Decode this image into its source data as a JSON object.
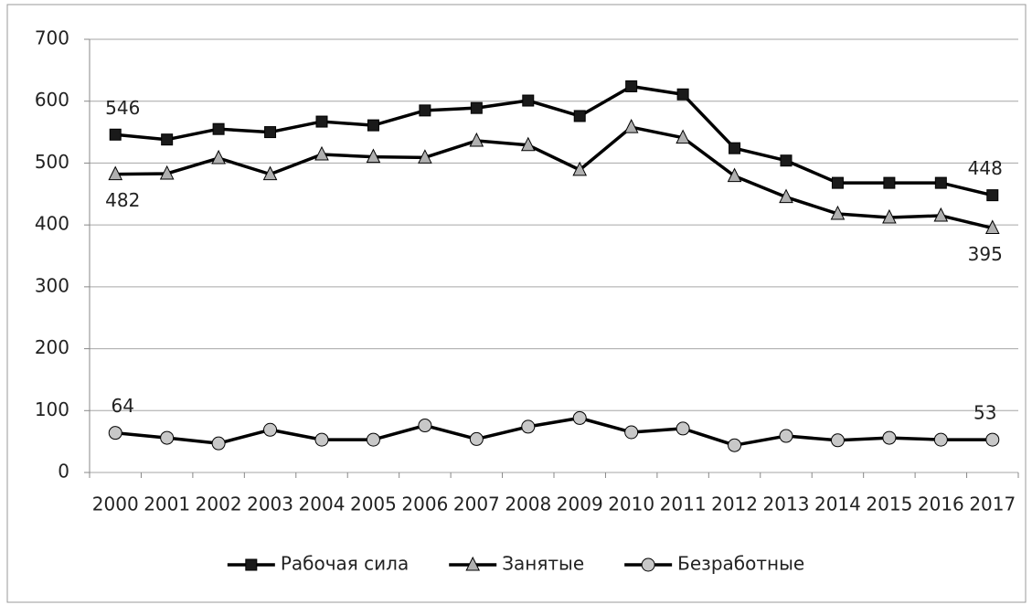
{
  "chart_data": {
    "type": "line",
    "categories": [
      "2000",
      "2001",
      "2002",
      "2003",
      "2004",
      "2005",
      "2006",
      "2007",
      "2008",
      "2009",
      "2010",
      "2011",
      "2012",
      "2013",
      "2014",
      "2015",
      "2016",
      "2017"
    ],
    "series": [
      {
        "name": "Рабочая сила",
        "color": "#000000",
        "marker": "square",
        "marker_color": "#1a1a1a",
        "label_position": "above",
        "values": [
          546,
          538,
          555,
          550,
          567,
          561,
          585,
          589,
          601,
          576,
          624,
          611,
          524,
          504,
          468,
          468,
          468,
          448
        ]
      },
      {
        "name": "Занятые",
        "color": "#000000",
        "marker": "triangle",
        "marker_color": "#b0b0b0",
        "label_position": "below",
        "values": [
          482,
          483,
          508,
          482,
          514,
          510,
          509,
          536,
          529,
          489,
          558,
          541,
          479,
          445,
          418,
          412,
          415,
          395
        ]
      },
      {
        "name": "Безработные",
        "color": "#000000",
        "marker": "circle",
        "marker_color": "#c8c8c8",
        "label_position": "above",
        "values": [
          64,
          56,
          47,
          69,
          53,
          53,
          76,
          54,
          74,
          88,
          65,
          71,
          44,
          59,
          52,
          56,
          53,
          53
        ]
      }
    ],
    "data_labels": "ends",
    "ylim": [
      0,
      700
    ],
    "yticks": [
      0,
      100,
      200,
      300,
      400,
      500,
      600,
      700
    ],
    "grid": true,
    "legend": "bottom"
  }
}
